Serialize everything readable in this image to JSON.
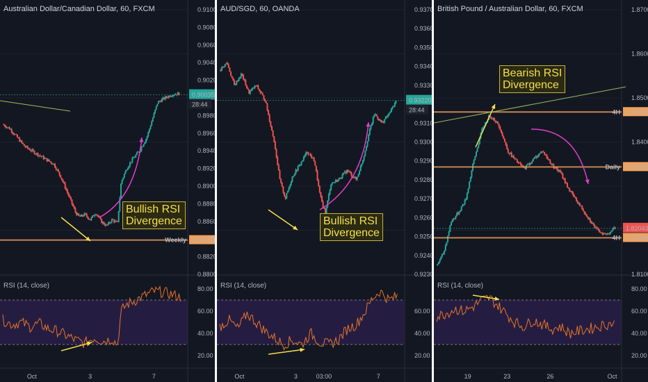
{
  "panels": [
    {
      "title": "Australian Dollar/Canadian Dollar, 60, FXCM",
      "price_ticks": [
        "0.91000",
        "0.90800",
        "0.90600",
        "0.90400",
        "0.90200",
        "0.90000",
        "0.89800",
        "0.89600",
        "0.89400",
        "0.89200",
        "0.89000",
        "0.88800",
        "0.88600",
        "0.88400",
        "0.88200",
        "0.88000"
      ],
      "price_badge": "0.90035",
      "timer_badge": "28:44",
      "level_badges": [
        {
          "label": "Weekly",
          "value": "0.88389",
          "color": "#f0a15a"
        }
      ],
      "annotation": [
        "Bullish RSI",
        "Divergence"
      ],
      "rsi_title": "RSI (14, close)",
      "rsi_ticks": [
        "80.00",
        "60.00",
        "40.00",
        "20.00"
      ],
      "x_ticks": [
        "Oct",
        "3",
        "7"
      ]
    },
    {
      "title": "AUD/SGD, 60, OANDA",
      "price_ticks": [
        "0.93700",
        "0.93600",
        "0.93500",
        "0.93400",
        "0.93300",
        "0.93220",
        "0.93100",
        "0.93000",
        "0.92900",
        "0.92800",
        "0.92700",
        "0.92600",
        "0.92500",
        "0.92400",
        "0.92300"
      ],
      "price_badge": "0.93220",
      "timer_badge": "28:44",
      "level_badges": [],
      "annotation": [
        "Bullish RSI",
        "Divergence"
      ],
      "rsi_title": "RSI (14, close)",
      "rsi_ticks": [
        "60.00",
        "40.00",
        "20.00"
      ],
      "x_ticks": [
        "Oct",
        "3",
        "03:00",
        "7"
      ]
    },
    {
      "title": "British Pound / Australian Dollar, 60, FXCM",
      "price_ticks": [
        "1.87000",
        "1.86000",
        "1.85000",
        "1.84681",
        "1.84000",
        "1.83435",
        "1.82000",
        "1.81000",
        "1.81828",
        "1.82043"
      ],
      "price_badge": "1.82043",
      "timer_badge": "28:44",
      "level_badges": [
        {
          "label": "4H",
          "value": "1.84681",
          "color": "#f0a15a"
        },
        {
          "label": "Daily",
          "value": "1.83435",
          "color": "#f0a15a"
        },
        {
          "label": "4H",
          "value": "1.81828",
          "color": "#f0a15a"
        }
      ],
      "annotation": [
        "Bearish RSI",
        "Divergence"
      ],
      "rsi_title": "RSI (14, close)",
      "rsi_ticks": [
        "80.00",
        "60.00",
        "40.00",
        "20.00"
      ],
      "x_ticks": [
        "19",
        "23",
        "26",
        "Oct"
      ]
    }
  ],
  "colors": {
    "background": "#131722",
    "up_candle": "#26a69a",
    "down_candle": "#ef5350",
    "rsi_line": "#e8742a",
    "rsi_band": "#2a1f4a",
    "trendline": "#9bbf5a",
    "arrow_yellow": "#f4e04d",
    "arrow_magenta": "#e040c8",
    "level_orange": "#f0a15a"
  },
  "chart_data": [
    {
      "type": "candlestick",
      "title": "Australian Dollar/Canadian Dollar, 60, FXCM",
      "y_range": [
        0.88,
        0.91
      ],
      "last_price": 0.90035,
      "levels": [
        {
          "name": "Weekly",
          "value": 0.88389
        }
      ],
      "close_path": [
        [
          0,
          0.897
        ],
        [
          8,
          0.8965
        ],
        [
          16,
          0.8955
        ],
        [
          24,
          0.8945
        ],
        [
          32,
          0.894
        ],
        [
          40,
          0.8935
        ],
        [
          48,
          0.893
        ],
        [
          56,
          0.8925
        ],
        [
          64,
          0.891
        ],
        [
          72,
          0.889
        ],
        [
          80,
          0.887
        ],
        [
          84,
          0.8865
        ],
        [
          90,
          0.8868
        ],
        [
          96,
          0.8862
        ],
        [
          102,
          0.887
        ],
        [
          108,
          0.886
        ],
        [
          114,
          0.8855
        ],
        [
          120,
          0.8862
        ],
        [
          126,
          0.8858
        ],
        [
          130,
          0.8905
        ],
        [
          136,
          0.892
        ],
        [
          142,
          0.893
        ],
        [
          150,
          0.894
        ],
        [
          158,
          0.8955
        ],
        [
          164,
          0.8975
        ],
        [
          170,
          0.8995
        ],
        [
          178,
          0.9
        ],
        [
          186,
          0.9004
        ],
        [
          194,
          0.9005
        ]
      ],
      "rsi": [
        [
          0,
          52
        ],
        [
          10,
          48
        ],
        [
          20,
          50
        ],
        [
          30,
          46
        ],
        [
          40,
          49
        ],
        [
          50,
          44
        ],
        [
          60,
          42
        ],
        [
          70,
          38
        ],
        [
          80,
          34
        ],
        [
          90,
          31
        ],
        [
          100,
          36
        ],
        [
          110,
          33
        ],
        [
          120,
          35
        ],
        [
          126,
          30
        ],
        [
          130,
          60
        ],
        [
          136,
          66
        ],
        [
          146,
          70
        ],
        [
          156,
          74
        ],
        [
          166,
          78
        ],
        [
          176,
          77
        ],
        [
          186,
          75
        ],
        [
          196,
          72
        ]
      ]
    },
    {
      "type": "candlestick",
      "title": "AUD/SGD, 60, OANDA",
      "y_range": [
        0.923,
        0.937
      ],
      "last_price": 0.9322,
      "close_path": [
        [
          0,
          0.9338
        ],
        [
          8,
          0.9342
        ],
        [
          16,
          0.933
        ],
        [
          24,
          0.9336
        ],
        [
          32,
          0.9326
        ],
        [
          40,
          0.933
        ],
        [
          50,
          0.9322
        ],
        [
          60,
          0.93
        ],
        [
          66,
          0.928
        ],
        [
          72,
          0.927
        ],
        [
          80,
          0.9282
        ],
        [
          88,
          0.9288
        ],
        [
          96,
          0.9295
        ],
        [
          104,
          0.929
        ],
        [
          110,
          0.9272
        ],
        [
          116,
          0.9262
        ],
        [
          122,
          0.9278
        ],
        [
          130,
          0.928
        ],
        [
          140,
          0.9285
        ],
        [
          150,
          0.928
        ],
        [
          158,
          0.9292
        ],
        [
          164,
          0.9305
        ],
        [
          170,
          0.9315
        ],
        [
          178,
          0.931
        ],
        [
          186,
          0.9315
        ],
        [
          194,
          0.9322
        ]
      ],
      "rsi": [
        [
          0,
          46
        ],
        [
          10,
          52
        ],
        [
          20,
          44
        ],
        [
          30,
          58
        ],
        [
          40,
          50
        ],
        [
          50,
          42
        ],
        [
          60,
          36
        ],
        [
          70,
          30
        ],
        [
          80,
          34
        ],
        [
          90,
          30
        ],
        [
          100,
          40
        ],
        [
          110,
          32
        ],
        [
          120,
          30
        ],
        [
          130,
          34
        ],
        [
          140,
          44
        ],
        [
          150,
          48
        ],
        [
          160,
          60
        ],
        [
          168,
          72
        ],
        [
          176,
          78
        ],
        [
          186,
          70
        ],
        [
          196,
          74
        ]
      ]
    },
    {
      "type": "candlestick",
      "title": "British Pound / Australian Dollar, 60, FXCM",
      "y_range": [
        1.81,
        1.87
      ],
      "last_price": 1.82043,
      "levels": [
        {
          "name": "4H",
          "value": 1.84681
        },
        {
          "name": "Daily",
          "value": 1.83435
        },
        {
          "name": "4H",
          "value": 1.81828
        }
      ],
      "close_path": [
        [
          0,
          1.812
        ],
        [
          8,
          1.815
        ],
        [
          16,
          1.822
        ],
        [
          24,
          1.824
        ],
        [
          32,
          1.827
        ],
        [
          40,
          1.835
        ],
        [
          50,
          1.843
        ],
        [
          58,
          1.846
        ],
        [
          64,
          1.845
        ],
        [
          70,
          1.843
        ],
        [
          78,
          1.838
        ],
        [
          86,
          1.836
        ],
        [
          96,
          1.834
        ],
        [
          106,
          1.836
        ],
        [
          116,
          1.838
        ],
        [
          126,
          1.835
        ],
        [
          136,
          1.833
        ],
        [
          146,
          1.829
        ],
        [
          156,
          1.826
        ],
        [
          166,
          1.823
        ],
        [
          176,
          1.82
        ],
        [
          186,
          1.819
        ],
        [
          196,
          1.8205
        ]
      ],
      "rsi": [
        [
          0,
          55
        ],
        [
          10,
          58
        ],
        [
          20,
          62
        ],
        [
          30,
          60
        ],
        [
          40,
          64
        ],
        [
          50,
          70
        ],
        [
          58,
          72
        ],
        [
          66,
          66
        ],
        [
          76,
          58
        ],
        [
          86,
          50
        ],
        [
          96,
          46
        ],
        [
          106,
          52
        ],
        [
          116,
          48
        ],
        [
          126,
          44
        ],
        [
          136,
          46
        ],
        [
          146,
          40
        ],
        [
          156,
          42
        ],
        [
          166,
          44
        ],
        [
          176,
          46
        ],
        [
          186,
          48
        ],
        [
          196,
          50
        ]
      ]
    }
  ]
}
